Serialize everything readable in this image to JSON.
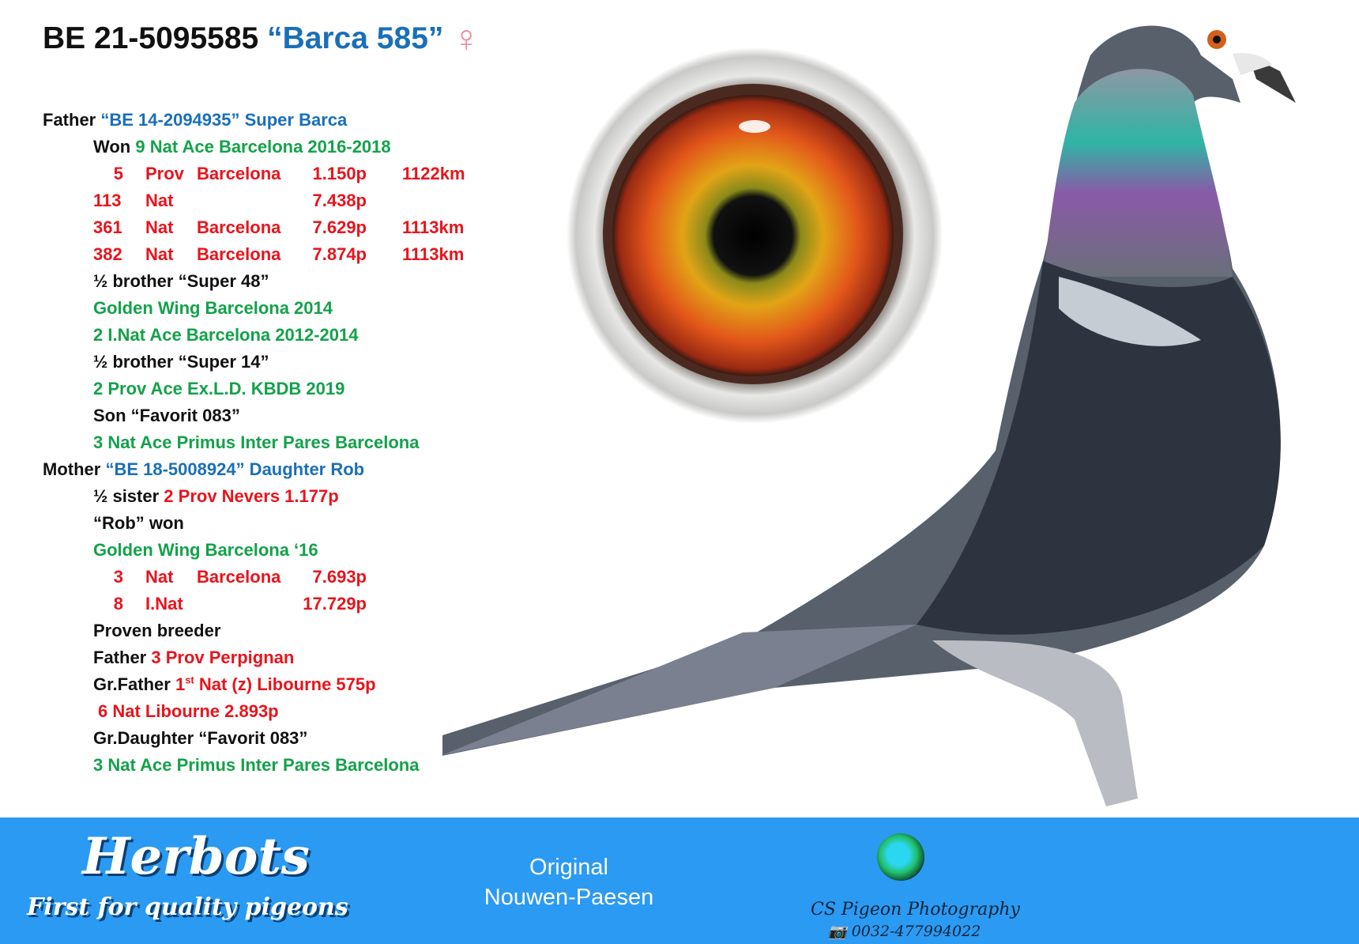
{
  "title": {
    "ring": "BE 21-5095585",
    "name": "“Barca 585”",
    "sex_symbol": "♀"
  },
  "father": {
    "label": "Father",
    "ring_name": "“BE 14-2094935” Super Barca"
  },
  "father_lines": {
    "won_label": "Won",
    "won_text": "9 Nat Ace Barcelona 2016-2018",
    "results": [
      {
        "place": "5",
        "level": "Prov",
        "race": "Barcelona",
        "points": "1.150p",
        "distance": "1122km"
      },
      {
        "place": "113",
        "level": "Nat",
        "race": "",
        "points": "7.438p",
        "distance": ""
      },
      {
        "place": "361",
        "level": "Nat",
        "race": "Barcelona",
        "points": "7.629p",
        "distance": "1113km"
      },
      {
        "place": "382",
        "level": "Nat",
        "race": "Barcelona",
        "points": "7.874p",
        "distance": "1113km"
      }
    ],
    "brother1": "½ brother “Super 48”",
    "brother1_a": "Golden Wing Barcelona 2014",
    "brother1_b": "2 I.Nat Ace Barcelona 2012-2014",
    "brother2": "½ brother “Super 14”",
    "brother2_a": "2 Prov Ace Ex.L.D. KBDB 2019",
    "son": "Son “Favorit 083”",
    "son_a": "3 Nat Ace Primus Inter Pares Barcelona"
  },
  "mother": {
    "label": "Mother",
    "ring_name": "“BE 18-5008924” Daughter Rob"
  },
  "mother_lines": {
    "sister_label": "½ sister",
    "sister_text": "2 Prov Nevers 1.177p",
    "rob_won": "“Rob” won",
    "golden": "Golden Wing Barcelona ‘16",
    "results": [
      {
        "place": "3",
        "level": "Nat",
        "race": "Barcelona",
        "points": "7.693p"
      },
      {
        "place": "8",
        "level": "I.Nat",
        "race": "",
        "points": "17.729p"
      }
    ],
    "proven": "Proven breeder",
    "father_label": "Father",
    "father_text": "3 Prov Perpignan",
    "grfather_label": "Gr.Father",
    "grfather_num": "1",
    "grfather_sup": "st",
    "grfather_text": "Nat (z) Libourne 575p",
    "grfather_2": "6 Nat Libourne 2.893p",
    "grdaughter": "Gr.Daughter “Favorit 083”",
    "grdaughter_a": "3 Nat Ace Primus Inter Pares Barcelona"
  },
  "footer": {
    "logo_big": "Herbots",
    "logo_small": "First for quality pigeons",
    "original_1": "Original",
    "original_2": "Nouwen-Paesen",
    "photographer": "CS Pigeon Photography",
    "phone": "0032-477994022",
    "background": "#2b9af3"
  },
  "colors": {
    "blue": "#1a6fb8",
    "green": "#13a24a",
    "red": "#e8141c"
  }
}
